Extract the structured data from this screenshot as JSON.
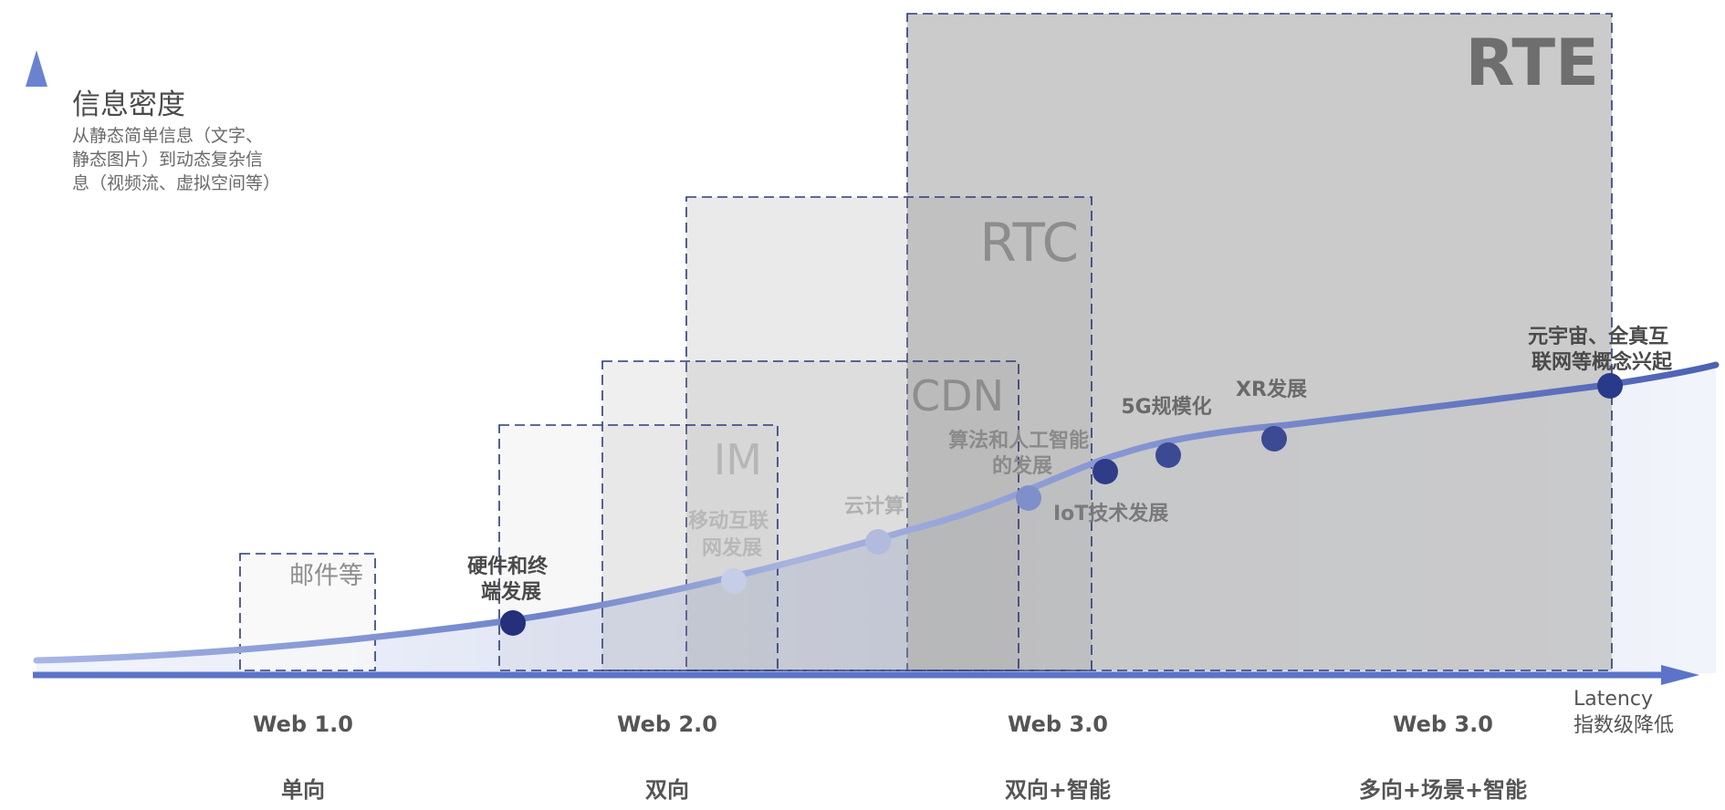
{
  "y_axis": {
    "title": "信息密度",
    "description": [
      "从静态简单信息（文字、",
      "静态图片）到动态复杂信",
      "息（视频流、虚拟空间等）"
    ]
  },
  "x_axis": {
    "label": [
      "Latency",
      "指数级降低"
    ]
  },
  "boxes": {
    "mail": "邮件等",
    "im": "IM",
    "cdn": "CDN",
    "rtc": "RTC",
    "rte": "RTE"
  },
  "milestones": {
    "hardware": [
      "硬件和终",
      "端发展"
    ],
    "mobile": [
      "移动互联",
      "网发展"
    ],
    "cloud": [
      "云计算"
    ],
    "ai": [
      "算法和人工智能",
      "的发展"
    ],
    "iot": [
      "IoT技术发展"
    ],
    "g5": [
      "5G规模化"
    ],
    "xr": [
      "XR发展"
    ],
    "meta": [
      "元宇宙、全真互",
      "联网等概念兴起"
    ]
  },
  "eras": [
    {
      "name": "Web 1.0",
      "mode": "单向"
    },
    {
      "name": "Web 2.0",
      "mode": "双向"
    },
    {
      "name": "Web 3.0",
      "mode": "双向+智能"
    },
    {
      "name": "Web 3.0",
      "mode": "多向+场景+智能"
    }
  ],
  "colors": {
    "axis": "#5b74c9",
    "curve": "#5468b0",
    "dot_dark": "#24307a",
    "box_border": "#2c3a78",
    "rte_fill": "#c8c8c8"
  }
}
